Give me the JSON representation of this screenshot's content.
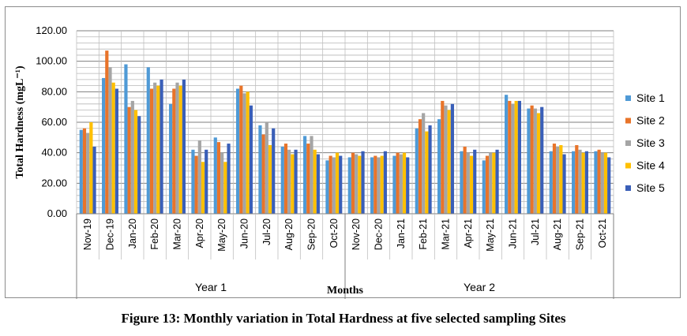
{
  "caption": "Figure 13: Monthly variation in Total Hardness at five selected sampling Sites",
  "chart_data": {
    "type": "bar",
    "title": "",
    "xlabel": "Months",
    "ylabel": "Total Hardness (mgL⁻¹)",
    "ylim": [
      0,
      120
    ],
    "y_ticks": [
      "0.00",
      "20.00",
      "40.00",
      "60.00",
      "80.00",
      "100.00",
      "120.00"
    ],
    "grid": true,
    "legend_position": "right",
    "groups": [
      {
        "label": "Year 1",
        "count": 12
      },
      {
        "label": "Year 2",
        "count": 12
      }
    ],
    "categories": [
      "Nov-19",
      "Dec-19",
      "Jan-20",
      "Feb-20",
      "Mar-20",
      "Apr-20",
      "May-20",
      "Jun-20",
      "Jul-20",
      "Aug-20",
      "Sep-20",
      "Oct-20",
      "Nov-20",
      "Dec-20",
      "Jan-21",
      "Feb-21",
      "Mar-21",
      "Apr-21",
      "May-21",
      "Jun-21",
      "Jul-21",
      "Aug-21",
      "Sep-21",
      "Oct-21"
    ],
    "series": [
      {
        "name": "Site 1",
        "color": "#4f9ad6",
        "values": [
          55,
          89,
          98,
          96,
          72,
          42,
          50,
          82,
          58,
          44,
          51,
          35,
          37,
          37,
          38,
          56,
          62,
          41,
          35,
          78,
          69,
          41,
          41,
          41
        ]
      },
      {
        "name": "Site 2",
        "color": "#e8742a",
        "values": [
          56,
          107,
          70,
          82,
          82,
          38,
          47,
          84,
          52,
          46,
          46,
          38,
          40,
          38,
          40,
          62,
          74,
          44,
          38,
          74,
          71,
          46,
          45,
          42
        ]
      },
      {
        "name": "Site 3",
        "color": "#a5a5a5",
        "values": [
          53,
          96,
          74,
          86,
          86,
          48,
          40,
          79,
          60,
          42,
          51,
          37,
          39,
          37,
          39,
          66,
          71,
          40,
          40,
          72,
          69,
          44,
          42,
          40
        ]
      },
      {
        "name": "Site 4",
        "color": "#ffc000",
        "values": [
          60,
          86,
          68,
          84,
          84,
          34,
          34,
          80,
          45,
          39,
          42,
          40,
          38,
          38,
          40,
          54,
          68,
          38,
          40,
          74,
          66,
          45,
          40,
          40
        ]
      },
      {
        "name": "Site 5",
        "color": "#3a5fb8",
        "values": [
          44,
          82,
          64,
          88,
          88,
          42,
          46,
          71,
          56,
          42,
          39,
          38,
          41,
          41,
          37,
          58,
          72,
          42,
          42,
          74,
          70,
          39,
          41,
          37
        ]
      }
    ]
  }
}
